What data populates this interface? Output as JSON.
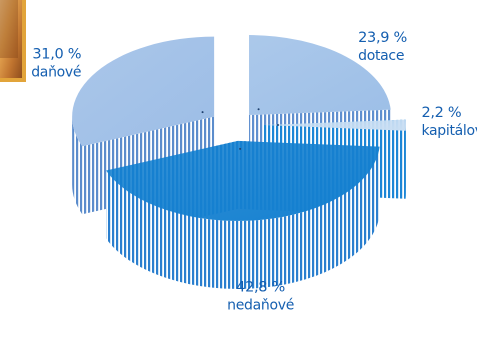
{
  "chart_data": {
    "type": "pie",
    "title": "",
    "variant": "3d-exploded",
    "slices": [
      {
        "label": "dotace",
        "value": 23.9,
        "value_text": "23,9 %",
        "color": "#9dbfe7",
        "dark": "#5f8fcf"
      },
      {
        "label": "kapitálové",
        "value": 2.2,
        "value_text": "2,2 %",
        "color": "#c9def3",
        "dark": "#1c86d6"
      },
      {
        "label": "nedaňové",
        "value": 42.8,
        "value_text": "42,8 %",
        "color": "#1480d0",
        "dark": "#2a7fcf"
      },
      {
        "label": "daňové",
        "value": 31.0,
        "value_text": "31,0 %",
        "color": "#9cbde6",
        "dark": "#5b8ccc"
      }
    ],
    "label_color": "#155fb0"
  },
  "decor": {
    "corner_image_colors": [
      "#f5c888",
      "#e3a24f",
      "#c0742f",
      "#8d4c1c"
    ]
  }
}
